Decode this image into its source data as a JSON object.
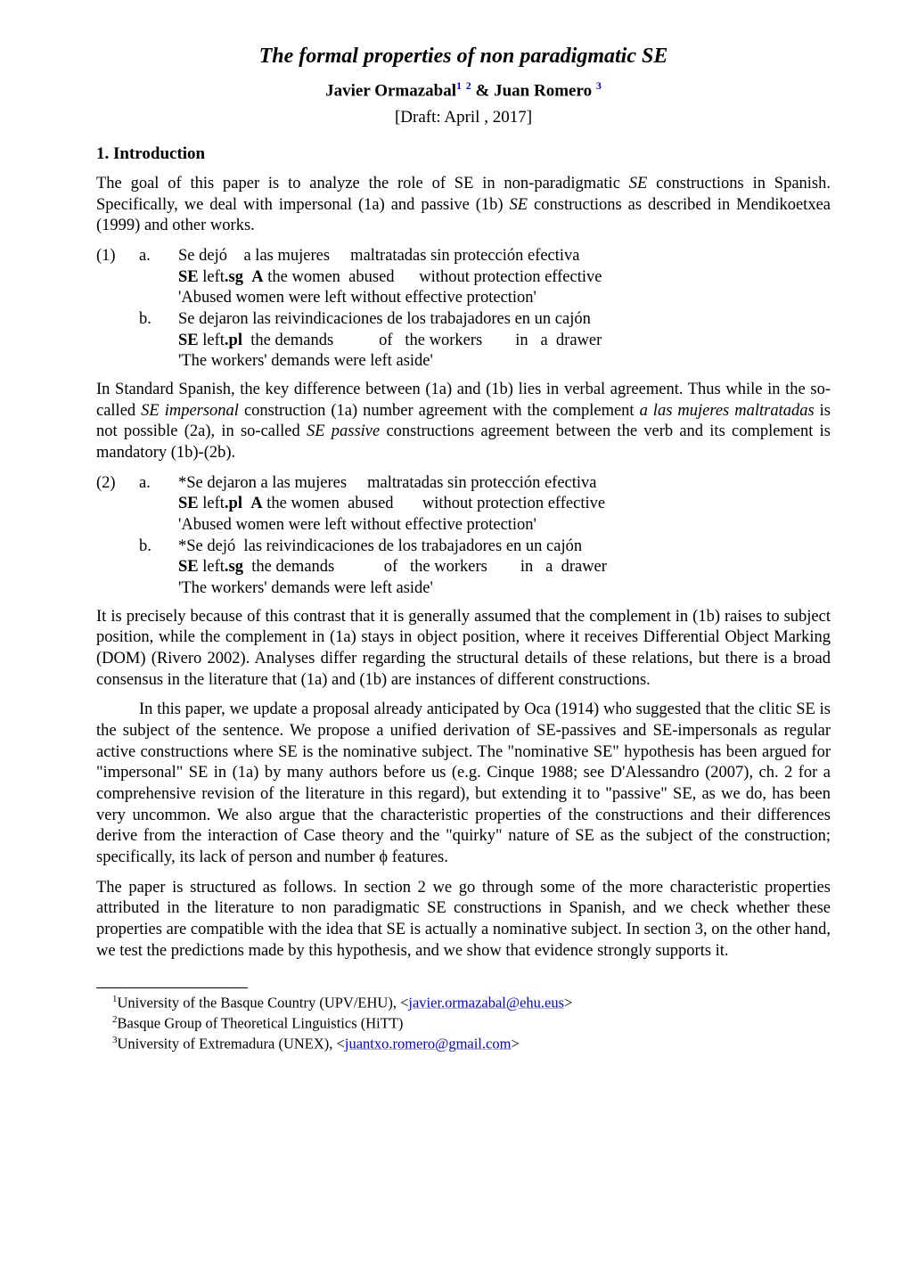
{
  "title": "The formal properties of non paradigmatic SE",
  "authors": {
    "line_prefix": "Javier Ormazabal",
    "sup1": "1",
    "sup2": "2",
    "mid": " & Juan Romero",
    "sup3": "3"
  },
  "draft": "[Draft: April , 2017]",
  "section1": "1. Introduction",
  "intro_p1": "The goal of this paper is to analyze the role of SE in non-paradigmatic SE constructions in Spanish. Specifically, we deal with impersonal (1a) and passive (1b) SE constructions as described in Mendikoetxea (1999) and other works.",
  "intro_p1_italics": {
    "se": "SE"
  },
  "ex1": {
    "num": "(1)",
    "a": {
      "letter": "a.",
      "l1": "Se dejó    a las mujeres     maltratadas sin protección efectiva",
      "l2_pre": "SE",
      "l2_rest": " left.sg  A the women  abused      without protection effective",
      "l3": "'Abused women were left without effective protection'"
    },
    "b": {
      "letter": "b.",
      "l1": "Se dejaron las reivindicaciones de los trabajadores en un cajón",
      "l2_pre": "SE",
      "l2_rest": " left.pl  the demands           of   the workers        in   a  drawer",
      "l3": "'The workers' demands were left aside'"
    }
  },
  "mid_p": "In Standard Spanish, the key difference between (1a) and (1b) lies in verbal agreement. Thus while in the so-called SE impersonal construction (1a) number agreement with the complement a las mujeres maltratadas is not possible (2a),  in so-called SE passive constructions agreement between the verb and its complement is mandatory (1b)-(2b).",
  "ex2": {
    "num": "(2)",
    "a": {
      "letter": "a.",
      "l1": "*Se dejaron a las mujeres     maltratadas sin protección efectiva",
      "l2_pre": "SE",
      "l2_rest": " left.pl  A the women  abused       without protection effective",
      "l3": "'Abused women were left without effective protection'"
    },
    "b": {
      "letter": "b.",
      "l1": "*Se dejó  las reivindicaciones de los trabajadores en un cajón",
      "l2_pre": "SE",
      "l2_rest": " left.sg  the demands            of   the workers        in   a  drawer",
      "l3": "'The workers' demands were left aside'"
    }
  },
  "disc_p1": "It is precisely because of this contrast that it is generally assumed that the complement in (1b) raises to subject position, while the complement in (1a) stays in object position, where it receives Differential Object Marking (DOM) (Rivero 2002). Analyses differ regarding the structural details of these relations, but there is a broad consensus in the literature that (1a) and (1b) are instances of different constructions.",
  "disc_p2": "In this paper, we update a proposal already anticipated by Oca (1914) who suggested that the clitic SE is the subject of the sentence. We propose a unified derivation of SE-passives and SE-impersonals as regular active constructions where SE is the nominative subject. The \"nominative SE\" hypothesis has been argued for \"impersonal\" SE in (1a) by many authors before us (e.g. Cinque 1988; see D'Alessandro (2007), ch. 2 for a comprehensive revision of the literature in this regard), but extending it to \"passive\" SE, as we do, has been very uncommon. We also argue that the characteristic properties of the constructions and their differences derive from the interaction of Case theory and the \"quirky\" nature of SE as the subject of the construction; specifically, its lack of person and number ϕ features.",
  "disc_p3": "The paper is structured as follows. In section 2 we go through some of the more characteristic properties attributed in the literature to non paradigmatic SE constructions in Spanish, and we check whether these properties are compatible with the idea that SE is actually a nominative subject. In section 3, on the other hand, we test the predictions made by this hypothesis, and we show that evidence strongly supports it.",
  "footnotes": {
    "f1_pre": "University of the Basque Country (UPV/EHU),   <",
    "f1_link": "javier.ormazabal@ehu.eus",
    "f1_post": ">",
    "f2": "Basque Group of Theoretical Linguistics (HiTT)",
    "f3_pre": "University of Extremadura (UNEX), <",
    "f3_link": "juantxo.romero@gmail.com",
    "f3_post": ">"
  }
}
